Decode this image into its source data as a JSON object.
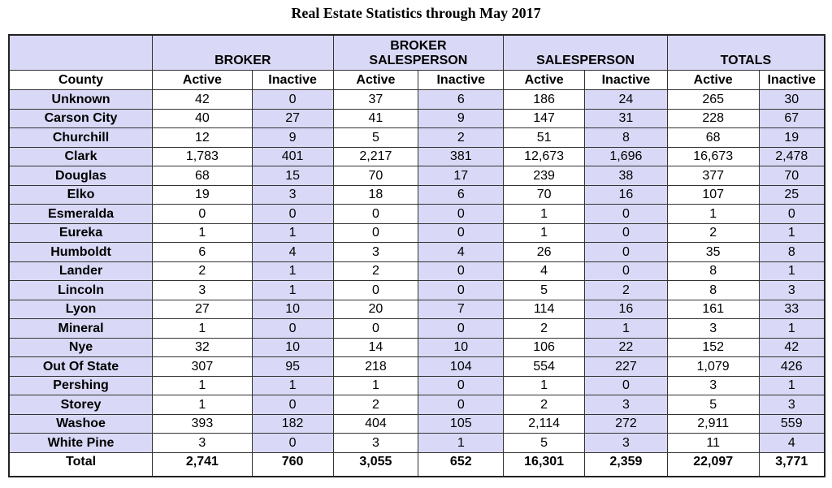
{
  "title": "Real Estate Statistics through May 2017",
  "colors": {
    "row_fill": "#d9d9f7",
    "alt_fill": "#ffffff",
    "border": "#333333"
  },
  "groups": [
    "BROKER",
    "BROKER SALESPERSON",
    "SALESPERSON",
    "TOTALS"
  ],
  "subheaders": [
    "County",
    "Active",
    "Inactive",
    "Active",
    "Inactive",
    "Active",
    "Inactive",
    "Active",
    "Inactive"
  ],
  "rows": [
    [
      "Unknown",
      "42",
      "0",
      "37",
      "6",
      "186",
      "24",
      "265",
      "30"
    ],
    [
      "Carson City",
      "40",
      "27",
      "41",
      "9",
      "147",
      "31",
      "228",
      "67"
    ],
    [
      "Churchill",
      "12",
      "9",
      "5",
      "2",
      "51",
      "8",
      "68",
      "19"
    ],
    [
      "Clark",
      "1,783",
      "401",
      "2,217",
      "381",
      "12,673",
      "1,696",
      "16,673",
      "2,478"
    ],
    [
      "Douglas",
      "68",
      "15",
      "70",
      "17",
      "239",
      "38",
      "377",
      "70"
    ],
    [
      "Elko",
      "19",
      "3",
      "18",
      "6",
      "70",
      "16",
      "107",
      "25"
    ],
    [
      "Esmeralda",
      "0",
      "0",
      "0",
      "0",
      "1",
      "0",
      "1",
      "0"
    ],
    [
      "Eureka",
      "1",
      "1",
      "0",
      "0",
      "1",
      "0",
      "2",
      "1"
    ],
    [
      "Humboldt",
      "6",
      "4",
      "3",
      "4",
      "26",
      "0",
      "35",
      "8"
    ],
    [
      "Lander",
      "2",
      "1",
      "2",
      "0",
      "4",
      "0",
      "8",
      "1"
    ],
    [
      "Lincoln",
      "3",
      "1",
      "0",
      "0",
      "5",
      "2",
      "8",
      "3"
    ],
    [
      "Lyon",
      "27",
      "10",
      "20",
      "7",
      "114",
      "16",
      "161",
      "33"
    ],
    [
      "Mineral",
      "1",
      "0",
      "0",
      "0",
      "2",
      "1",
      "3",
      "1"
    ],
    [
      "Nye",
      "32",
      "10",
      "14",
      "10",
      "106",
      "22",
      "152",
      "42"
    ],
    [
      "Out Of State",
      "307",
      "95",
      "218",
      "104",
      "554",
      "227",
      "1,079",
      "426"
    ],
    [
      "Pershing",
      "1",
      "1",
      "1",
      "0",
      "1",
      "0",
      "3",
      "1"
    ],
    [
      "Storey",
      "1",
      "0",
      "2",
      "0",
      "2",
      "3",
      "5",
      "3"
    ],
    [
      "Washoe",
      "393",
      "182",
      "404",
      "105",
      "2,114",
      "272",
      "2,911",
      "559"
    ],
    [
      "White Pine",
      "3",
      "0",
      "3",
      "1",
      "5",
      "3",
      "11",
      "4"
    ]
  ],
  "total": [
    "Total",
    "2,741",
    "760",
    "3,055",
    "652",
    "16,301",
    "2,359",
    "22,097",
    "3,771"
  ]
}
